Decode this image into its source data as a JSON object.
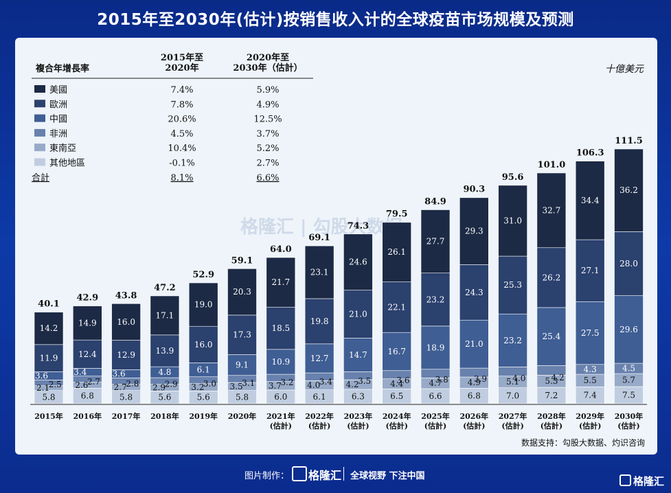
{
  "title": "2015年至2030年(估计)按销售收入计的全球疫苗市场规模及预测",
  "unit": "十億美元",
  "source": "数据支持：勾股大数据、灼识咨询",
  "footer": {
    "made_by": "图片制作：",
    "logo": "格隆汇",
    "slogan": "全球视野 下注中国"
  },
  "corner_logo": "格隆汇",
  "watermark": "格隆汇 | 勾股大数据",
  "cagr_table": {
    "header_label": "複合年增長率",
    "col1": [
      "2015年至",
      "2020年"
    ],
    "col2": [
      "2020年至",
      "2030年（估計）"
    ],
    "rows": [
      {
        "region": "美國",
        "color": "#1c2a45",
        "c1": "7.4%",
        "c2": "5.9%"
      },
      {
        "region": "歐洲",
        "color": "#2b416e",
        "c1": "7.8%",
        "c2": "4.9%"
      },
      {
        "region": "中國",
        "color": "#3f5e94",
        "c1": "20.6%",
        "c2": "12.5%"
      },
      {
        "region": "非洲",
        "color": "#6881ad",
        "c1": "4.5%",
        "c2": "3.7%"
      },
      {
        "region": "東南亞",
        "color": "#97aac8",
        "c1": "10.4%",
        "c2": "5.2%"
      },
      {
        "region": "其他地區",
        "color": "#c0cde0",
        "c1": "-0.1%",
        "c2": "2.7%"
      }
    ],
    "total": {
      "region": "合計",
      "c1": "8.1%",
      "c2": "6.6%"
    }
  },
  "chart_data": {
    "type": "bar",
    "stacked": true,
    "categories": [
      [
        "2015年"
      ],
      [
        "2016年"
      ],
      [
        "2017年"
      ],
      [
        "2018年"
      ],
      [
        "2019年"
      ],
      [
        "2020年"
      ],
      [
        "2021年",
        "(估計)"
      ],
      [
        "2022年",
        "(估計)"
      ],
      [
        "2023年",
        "(估計)"
      ],
      [
        "2024年",
        "(估計)"
      ],
      [
        "2025年",
        "(估計)"
      ],
      [
        "2026年",
        "(估計)"
      ],
      [
        "2027年",
        "(估計)"
      ],
      [
        "2028年",
        "(估計)"
      ],
      [
        "2029年",
        "(估計)"
      ],
      [
        "2030年",
        "(估計)"
      ]
    ],
    "totals": [
      40.1,
      42.9,
      43.8,
      47.2,
      52.9,
      59.1,
      64.0,
      69.1,
      74.3,
      79.5,
      84.9,
      90.3,
      95.6,
      101.0,
      106.3,
      111.5
    ],
    "series": [
      {
        "name": "其他地區",
        "color": "#c0cde0",
        "labels": [
          "5.8",
          "6.8",
          "5.8",
          "5.6",
          "5.6",
          "5.8",
          "6.0",
          "6.1",
          "6.3",
          "6.5",
          "6.6",
          "6.8",
          "7.0",
          "7.2",
          "7.4",
          "7.5"
        ],
        "values": [
          5.8,
          6.8,
          5.8,
          5.6,
          5.6,
          5.8,
          6.0,
          6.1,
          6.3,
          6.5,
          6.6,
          6.8,
          7.0,
          7.2,
          7.4,
          7.5
        ]
      },
      {
        "name": "東南亞",
        "color": "#97aac8",
        "labels": [
          "2.1",
          "2.6",
          "2.7",
          "2.9",
          "3.2",
          "3.5",
          "3.7",
          "4.0",
          "4.2",
          "4.4",
          "4.7",
          "4.9",
          "5.1",
          "5.3",
          "5.5",
          "5.7"
        ],
        "values": [
          2.1,
          2.6,
          2.7,
          2.9,
          3.2,
          3.5,
          3.7,
          4.0,
          4.2,
          4.4,
          4.7,
          4.9,
          5.1,
          5.3,
          5.5,
          5.7
        ]
      },
      {
        "name": "非洲",
        "color": "#6881ad",
        "labels": [
          "2.5",
          "2.7",
          "2.8",
          "2.9",
          "3.0",
          "3.1",
          "3.2",
          "3.4",
          "3.5",
          "3.6",
          "3.8",
          "3.9",
          "4.0",
          "4.2",
          "4.3",
          "4.5"
        ],
        "values": [
          2.5,
          2.7,
          2.8,
          2.9,
          3.0,
          3.1,
          3.2,
          3.4,
          3.5,
          3.6,
          3.8,
          3.9,
          4.0,
          4.2,
          4.3,
          4.5
        ]
      },
      {
        "name": "中國",
        "color": "#3f5e94",
        "labels": [
          "3.6",
          "3.4",
          "3.6",
          "4.8",
          "6.1",
          "9.1",
          "10.9",
          "12.7",
          "14.7",
          "16.7",
          "18.9",
          "21.0",
          "23.2",
          "25.4",
          "27.5",
          "29.6"
        ],
        "values": [
          3.6,
          3.4,
          3.6,
          4.8,
          6.1,
          9.1,
          10.9,
          12.7,
          14.7,
          16.7,
          18.9,
          21.0,
          23.2,
          25.4,
          27.5,
          29.6
        ]
      },
      {
        "name": "歐洲",
        "color": "#2b416e",
        "labels": [
          "11.9",
          "12.4",
          "12.9",
          "13.9",
          "16.0",
          "17.3",
          "18.5",
          "19.8",
          "21.0",
          "22.1",
          "23.2",
          "24.3",
          "25.3",
          "26.2",
          "27.1",
          "28.0"
        ],
        "values": [
          11.9,
          12.4,
          12.9,
          13.9,
          16.0,
          17.3,
          18.5,
          19.8,
          21.0,
          22.1,
          23.2,
          24.3,
          25.3,
          26.2,
          27.1,
          28.0
        ]
      },
      {
        "name": "美國",
        "color": "#1c2a45",
        "labels": [
          "14.2",
          "14.9",
          "16.0",
          "17.1",
          "19.0",
          "20.3",
          "21.7",
          "23.1",
          "24.6",
          "26.1",
          "27.7",
          "29.3",
          "31.0",
          "32.7",
          "34.4",
          "36.2"
        ],
        "values": [
          14.2,
          14.9,
          16.0,
          17.1,
          19.0,
          20.3,
          21.7,
          23.1,
          24.6,
          26.1,
          27.7,
          29.3,
          31.0,
          32.7,
          34.4,
          36.2
        ]
      }
    ],
    "ylim": [
      0,
      111.5
    ],
    "grid": false,
    "legend": "top-left"
  }
}
